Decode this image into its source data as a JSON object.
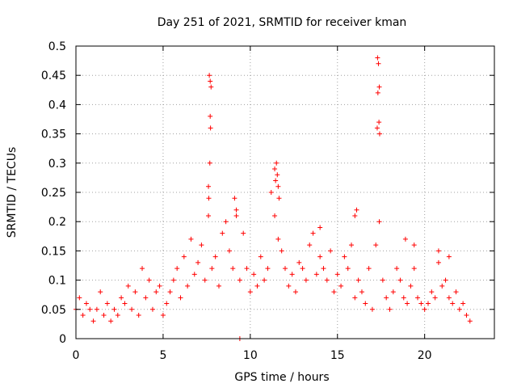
{
  "chart_data": {
    "type": "scatter",
    "title": "Day 251 of 2021, SRMTID for receiver kman",
    "xlabel": "GPS time / hours",
    "ylabel": "SRMTID / TECUs",
    "xlim": [
      0,
      24
    ],
    "ylim": [
      0,
      0.5
    ],
    "x_ticks": [
      0,
      5,
      10,
      15,
      20
    ],
    "x_tick_labels": [
      "0",
      "5",
      "10",
      "15",
      "20"
    ],
    "y_ticks": [
      0,
      0.05,
      0.1,
      0.15,
      0.2,
      0.25,
      0.3,
      0.35,
      0.4,
      0.45,
      0.5
    ],
    "y_tick_labels": [
      "0",
      "0.05",
      "0.1",
      "0.15",
      "0.2",
      "0.25",
      "0.3",
      "0.35",
      "0.4",
      "0.45",
      "0.5"
    ],
    "grid": true,
    "marker": "+",
    "color": "#ff0000",
    "series": [
      {
        "name": "SRMTID",
        "x": [
          0.0,
          0.2,
          0.4,
          0.6,
          0.8,
          1.0,
          1.2,
          1.4,
          1.6,
          1.8,
          2.0,
          2.2,
          2.4,
          2.6,
          2.8,
          3.0,
          3.2,
          3.4,
          3.6,
          3.8,
          4.0,
          4.2,
          4.4,
          4.6,
          4.8,
          5.0,
          5.2,
          5.4,
          5.6,
          5.8,
          6.0,
          6.2,
          6.4,
          6.6,
          6.8,
          7.0,
          7.2,
          7.4,
          7.6,
          7.8,
          8.0,
          8.2,
          8.4,
          8.6,
          8.8,
          9.0,
          9.2,
          9.4,
          9.6,
          9.8,
          10.0,
          10.2,
          10.4,
          10.6,
          10.8,
          11.0,
          11.2,
          11.4,
          11.6,
          11.8,
          12.0,
          12.2,
          12.4,
          12.6,
          12.8,
          13.0,
          13.2,
          13.4,
          13.6,
          13.8,
          14.0,
          14.2,
          14.4,
          14.6,
          14.8,
          15.0,
          15.2,
          15.4,
          15.6,
          15.8,
          16.0,
          16.2,
          16.4,
          16.6,
          16.8,
          17.0,
          17.2,
          17.4,
          17.6,
          17.8,
          18.0,
          18.2,
          18.4,
          18.6,
          18.8,
          19.0,
          19.2,
          19.4,
          19.6,
          19.8,
          20.0,
          20.2,
          20.4,
          20.6,
          20.8,
          21.0,
          21.2,
          21.4,
          21.6,
          21.8,
          22.0,
          22.2,
          22.4,
          22.6,
          7.65,
          7.7,
          7.75,
          7.7,
          7.72,
          7.68,
          7.6,
          7.62,
          11.5,
          11.55,
          11.6,
          11.65,
          11.4,
          11.45,
          17.3,
          17.35,
          17.4,
          17.32,
          17.38,
          17.28,
          17.42,
          9.1,
          9.2,
          14.0,
          16.0,
          16.1,
          18.9,
          19.4,
          20.8,
          21.4,
          9.4
        ],
        "y": [
          0.05,
          0.07,
          0.04,
          0.06,
          0.05,
          0.03,
          0.05,
          0.08,
          0.04,
          0.06,
          0.03,
          0.05,
          0.04,
          0.07,
          0.06,
          0.09,
          0.05,
          0.08,
          0.04,
          0.12,
          0.07,
          0.1,
          0.05,
          0.08,
          0.09,
          0.04,
          0.06,
          0.08,
          0.1,
          0.12,
          0.07,
          0.14,
          0.09,
          0.17,
          0.11,
          0.13,
          0.16,
          0.1,
          0.21,
          0.12,
          0.14,
          0.09,
          0.18,
          0.2,
          0.15,
          0.12,
          0.22,
          0.1,
          0.18,
          0.12,
          0.08,
          0.11,
          0.09,
          0.14,
          0.1,
          0.12,
          0.25,
          0.21,
          0.17,
          0.15,
          0.12,
          0.09,
          0.11,
          0.08,
          0.13,
          0.12,
          0.1,
          0.16,
          0.18,
          0.11,
          0.14,
          0.12,
          0.1,
          0.15,
          0.08,
          0.11,
          0.09,
          0.14,
          0.12,
          0.16,
          0.07,
          0.1,
          0.08,
          0.06,
          0.12,
          0.05,
          0.16,
          0.2,
          0.1,
          0.07,
          0.05,
          0.08,
          0.12,
          0.1,
          0.07,
          0.06,
          0.09,
          0.12,
          0.07,
          0.06,
          0.05,
          0.06,
          0.08,
          0.07,
          0.13,
          0.09,
          0.1,
          0.07,
          0.06,
          0.08,
          0.05,
          0.06,
          0.04,
          0.03,
          0.45,
          0.44,
          0.43,
          0.38,
          0.36,
          0.3,
          0.26,
          0.24,
          0.3,
          0.28,
          0.26,
          0.24,
          0.29,
          0.27,
          0.48,
          0.47,
          0.43,
          0.42,
          0.37,
          0.36,
          0.35,
          0.24,
          0.21,
          0.19,
          0.21,
          0.22,
          0.17,
          0.16,
          0.15,
          0.14,
          0.0
        ]
      }
    ]
  }
}
